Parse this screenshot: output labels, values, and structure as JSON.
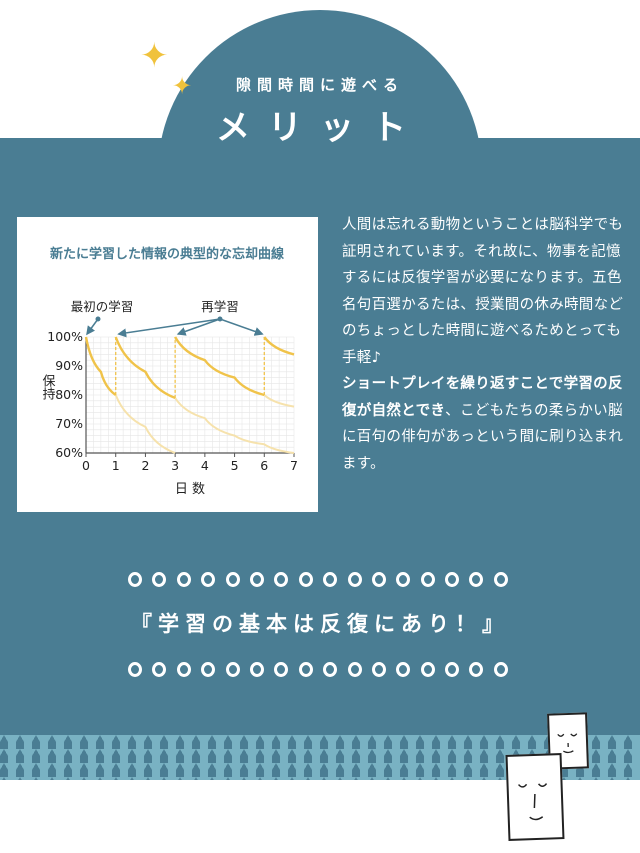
{
  "header": {
    "subtitle": "隙間時間に遊べる",
    "title": "メリット"
  },
  "chart_card": {
    "title": "新たに学習した情報の典型的な忘却曲線",
    "annotation_first": "最初の学習",
    "annotation_review": "再学習"
  },
  "chart_data": {
    "type": "line",
    "title": "新たに学習した情報の典型的な忘却曲線",
    "xlabel": "日 数",
    "ylabel": "保持",
    "xlim": [
      0,
      7
    ],
    "ylim": [
      60,
      100
    ],
    "x_ticks": [
      "0",
      "1",
      "2",
      "3",
      "4",
      "5",
      "6",
      "7"
    ],
    "y_ticks": [
      "60%",
      "70%",
      "80%",
      "90%",
      "100%"
    ],
    "grid": true,
    "colors": {
      "solid": "#f0c34a",
      "faded": "#f6e2ac",
      "axis": "#555555",
      "grid": "#e6e6e6",
      "arrow": "#4a7d93"
    },
    "curves": [
      {
        "solid": [
          [
            0,
            100
          ],
          [
            0.5,
            88
          ],
          [
            1,
            80
          ]
        ],
        "faded": [
          [
            1,
            80
          ],
          [
            2,
            69
          ],
          [
            3,
            60
          ]
        ]
      },
      {
        "solid": [
          [
            1,
            100
          ],
          [
            2,
            88
          ],
          [
            3,
            79
          ]
        ],
        "faded": [
          [
            3,
            79
          ],
          [
            4,
            72
          ],
          [
            5,
            66
          ],
          [
            6,
            63
          ],
          [
            7,
            60
          ]
        ]
      },
      {
        "solid": [
          [
            3,
            100
          ],
          [
            4,
            92
          ],
          [
            5,
            86
          ],
          [
            6,
            80
          ]
        ],
        "faded": [
          [
            6,
            80
          ],
          [
            7,
            76
          ]
        ]
      },
      {
        "solid": [
          [
            6,
            100
          ],
          [
            7,
            94
          ]
        ],
        "faded": []
      }
    ],
    "relearn_days": [
      1,
      3,
      6
    ]
  },
  "body": {
    "p1": "人間は忘れる動物ということは脳科学でも証明されています。それ故に、物事を記憶するには反復学習が必要になります。五色名句百選かるたは、授業間の休み時間などのちょっとした時間に遊べるためとっても手軽♪",
    "p2_bold": "ショートプレイを繰り返すことで学習の反復が自然とでき",
    "p2_rest": "、こどもたちの柔らかい脳に百句の俳句があっという間に刷り込まれます。"
  },
  "motto": "『学習の基本は反復にあり！』",
  "colors": {
    "teal": "#4a7d93",
    "pattern": "#7fb8c9",
    "sparkle": "#f0c23c"
  }
}
